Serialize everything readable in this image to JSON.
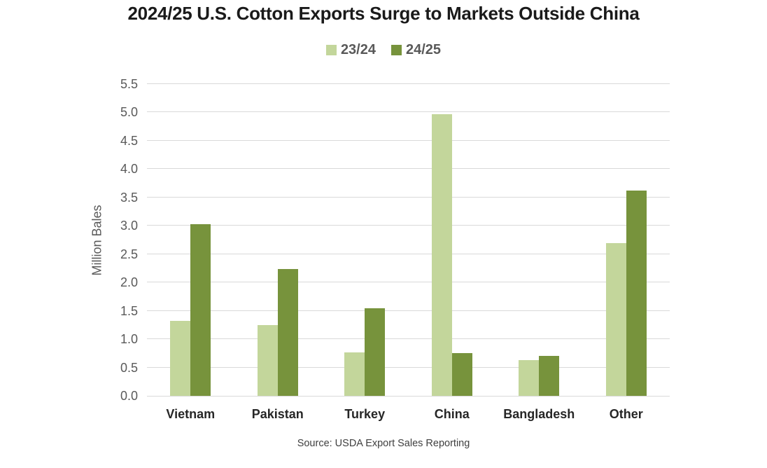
{
  "chart": {
    "title": "2024/25 U.S. Cotton Exports Surge to Markets Outside China",
    "source": "Source: USDA Export Sales Reporting"
  },
  "chart_data": {
    "type": "bar",
    "title": "2024/25 U.S. Cotton Exports Surge to Markets Outside China",
    "categories": [
      "Vietnam",
      "Pakistan",
      "Turkey",
      "China",
      "Bangladesh",
      "Other"
    ],
    "series": [
      {
        "name": "23/24",
        "color": "#c3d69b",
        "values": [
          1.32,
          1.25,
          0.77,
          4.97,
          0.63,
          2.7
        ]
      },
      {
        "name": "24/25",
        "color": "#77933c",
        "values": [
          3.03,
          2.24,
          1.55,
          0.75,
          0.7,
          3.62
        ]
      }
    ],
    "xlabel": "",
    "ylabel": "Million Bales",
    "ylim": [
      0,
      5.5
    ],
    "ytick_step": 0.5,
    "yticks": [
      "0.0",
      "0.5",
      "1.0",
      "1.5",
      "2.0",
      "2.5",
      "3.0",
      "3.5",
      "4.0",
      "4.5",
      "5.0",
      "5.5"
    ],
    "grid": true,
    "legend_position": "top",
    "annotation": "Source: USDA Export Sales Reporting"
  }
}
